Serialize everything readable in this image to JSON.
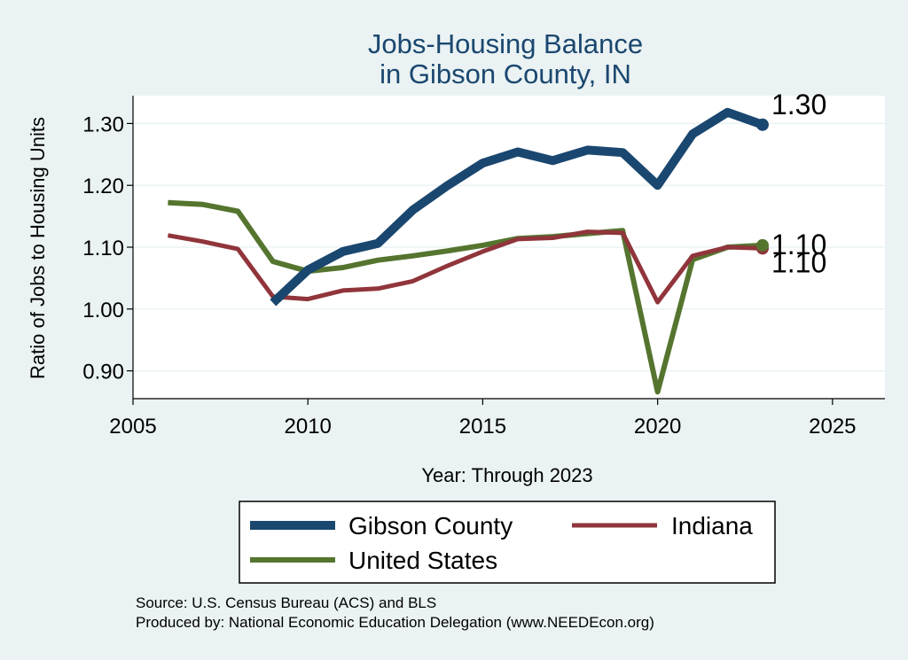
{
  "chart_data": {
    "type": "line",
    "title": [
      "Jobs-Housing Balance",
      "in Gibson County, IN"
    ],
    "xlabel": "Year: Through 2023",
    "ylabel": "Ratio of Jobs to Housing Units",
    "xlim": [
      2005,
      2026.5
    ],
    "ylim": [
      0.855,
      1.345
    ],
    "xticks": [
      2005,
      2010,
      2015,
      2020,
      2025
    ],
    "yticks": [
      0.9,
      1.0,
      1.1,
      1.2,
      1.3
    ],
    "ytick_labels": [
      "0.90",
      "1.00",
      "1.10",
      "1.20",
      "1.30"
    ],
    "grid": true,
    "legend_position": "bottom",
    "x": [
      2006,
      2007,
      2008,
      2009,
      2010,
      2011,
      2012,
      2013,
      2014,
      2015,
      2016,
      2017,
      2018,
      2019,
      2020,
      2021,
      2022,
      2023
    ],
    "series": [
      {
        "name": "Gibson County",
        "color": "#1a476f",
        "width": 10,
        "values": [
          null,
          null,
          null,
          1.01,
          1.063,
          1.093,
          1.106,
          1.16,
          1.2,
          1.236,
          1.254,
          1.24,
          1.257,
          1.253,
          1.2,
          1.283,
          1.318,
          1.298
        ],
        "end_label": "1.30"
      },
      {
        "name": "Indiana",
        "color": "#90353b",
        "width": 5,
        "values": [
          1.119,
          1.109,
          1.097,
          1.02,
          1.016,
          1.03,
          1.033,
          1.045,
          1.07,
          1.093,
          1.113,
          1.115,
          1.125,
          1.123,
          1.011,
          1.086,
          1.1,
          1.098
        ],
        "end_label": "1.10"
      },
      {
        "name": "United States",
        "color": "#55752f",
        "width": 6,
        "values": [
          1.172,
          1.169,
          1.158,
          1.077,
          1.061,
          1.067,
          1.079,
          1.086,
          1.094,
          1.103,
          1.114,
          1.117,
          1.122,
          1.127,
          0.866,
          1.08,
          1.1,
          1.103
        ],
        "end_label": "1.10"
      }
    ],
    "source_lines": [
      "Source: U.S. Census Bureau (ACS) and BLS",
      "Produced by: National Economic Education Delegation (www.NEEDEcon.org)"
    ]
  }
}
